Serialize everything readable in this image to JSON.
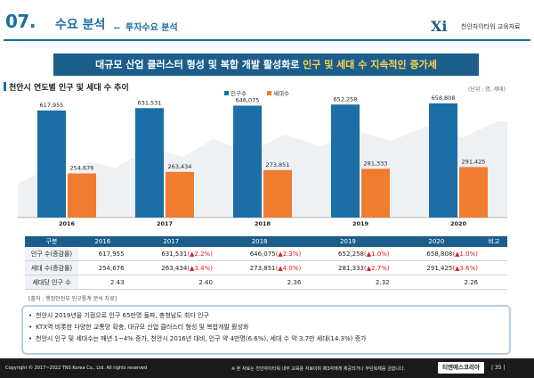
{
  "header": {
    "number": "07.",
    "title": "수요 분석",
    "separator": "_",
    "subtitle": "투자수요 분석",
    "logo_text": "천안자이타워 교육자료"
  },
  "banner": {
    "text_main": "대규모 산업 클러스터 형성 및 복합 개발 활성화로 ",
    "text_highlight": "인구 및 세대 수 지속적인 증가세"
  },
  "chart_section": {
    "title": "천안시 연도별 인구 및 세대 수 추이",
    "unit": "(단위 : 명, 세대)"
  },
  "chart_data": {
    "type": "bar",
    "categories": [
      "2016",
      "2017",
      "2018",
      "2019",
      "2020"
    ],
    "series": [
      {
        "name": "인구수",
        "values": [
          617955,
          631531,
          646075,
          652258,
          658808
        ],
        "labels": [
          "617,955",
          "631,531",
          "646,075",
          "652,258",
          "658,808"
        ],
        "color": "#1b6fa6"
      },
      {
        "name": "세대수",
        "values": [
          254676,
          263434,
          273851,
          281333,
          291425
        ],
        "labels": [
          "254,676",
          "263,434",
          "273,851",
          "281,333",
          "291,425"
        ],
        "color": "#ef7d2f"
      }
    ],
    "title": "천안시 연도별 인구 및 세대 수 추이",
    "ylim": [
      0,
      700000
    ]
  },
  "table": {
    "headers": [
      "구분",
      "2016",
      "2017",
      "2018",
      "2019",
      "2020",
      "비고"
    ],
    "rows": [
      {
        "label": "인구 수(증감률)",
        "cells": [
          {
            "value": "617,955",
            "change": ""
          },
          {
            "value": "631,531",
            "change": "(▲2.2%)"
          },
          {
            "value": "646,075",
            "change": "(▲2.3%)"
          },
          {
            "value": "652,258",
            "change": "(▲1.0%)"
          },
          {
            "value": "658,808",
            "change": "(▲1.0%)"
          }
        ]
      },
      {
        "label": "세대 수(증감률)",
        "cells": [
          {
            "value": "254,676",
            "change": ""
          },
          {
            "value": "263,434",
            "change": "(▲3.4%)"
          },
          {
            "value": "273,851",
            "change": "(▲4.0%)"
          },
          {
            "value": "281,333",
            "change": "(▲2.7%)"
          },
          {
            "value": "291,425",
            "change": "(▲3.6%)"
          }
        ]
      },
      {
        "label": "세대당 인구 수",
        "cells": [
          {
            "value": "2.43",
            "change": ""
          },
          {
            "value": "2.40",
            "change": ""
          },
          {
            "value": "2.36",
            "change": ""
          },
          {
            "value": "2.32",
            "change": ""
          },
          {
            "value": "2.26",
            "change": ""
          }
        ]
      }
    ],
    "source": "[출처 : 행정안전부 인구통계 분석 자료]"
  },
  "notes": [
    "천안시 2019년을 기점으로 인구 65만명 돌파, 충청남도 최다 인구",
    "KTX역 비롯한 다양한 교통망 확충, 대규모 산업 클러스터 형성 및 복합개발 활성화",
    "천안시 인구 및 세대수는 매년 1~4% 증가, 천안시 2016년 대비, 인구 약 4만명(6.6%), 세대 수 약 3.7만 세대(14.3%) 증가"
  ],
  "footer": {
    "copyright": "Copyright © 2017~2022 TNS Korea Co., Ltd.  All rights reserved",
    "notice": "※ 본 자료는 천안자이타워 내부 교육용 자료이며 제3자에게 제공되거나 무단복제를 금합니다.",
    "brand": "티엔에스코리아",
    "page": "| 35 |"
  },
  "colors": {
    "primary": "#1b5e8c",
    "accent_red": "#d22222",
    "population": "#1b6fa6",
    "household": "#ef7d2f"
  }
}
